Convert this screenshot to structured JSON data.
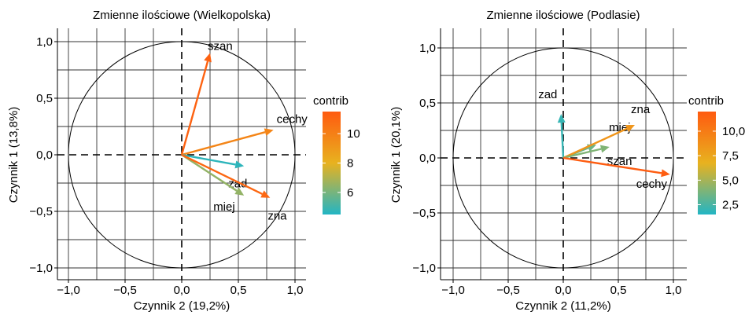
{
  "colors": {
    "low": "#22b5c4",
    "mid": "#e8b21f",
    "high": "#ff5a10",
    "grid": "#333333",
    "circle": "#000000"
  },
  "chart_data": [
    {
      "type": "scatter",
      "title": "Zmienne ilościowe (Wielkopolska)",
      "xlabel": "Czynnik 2 (19,2%)",
      "ylabel": "Czynnik 1 (13,8%)",
      "xlim": [
        -1.0,
        1.0
      ],
      "ylim": [
        -1.0,
        1.0
      ],
      "xticks": [
        -1.0,
        -0.5,
        0.0,
        0.5,
        1.0
      ],
      "yticks": [
        -1.0,
        -0.5,
        0.0,
        0.5,
        1.0
      ],
      "xtick_labels": [
        "−1,0",
        "−0,5",
        "0,0",
        "0,5",
        "1,0"
      ],
      "ytick_labels": [
        "−1,0",
        "−0,5",
        "0,0",
        "0,5",
        "1,0"
      ],
      "grid": true,
      "legend": {
        "title": "contrib",
        "position": "right",
        "min": 4.5,
        "max": 11.5,
        "ticks": [
          6,
          8,
          10
        ],
        "tick_labels": [
          "6",
          "8",
          "10"
        ]
      },
      "vectors": [
        {
          "name": "szan",
          "x": 0.25,
          "y": 0.9,
          "contrib": 11.2
        },
        {
          "name": "cechy",
          "x": 0.81,
          "y": 0.22,
          "contrib": 9.8
        },
        {
          "name": "zad",
          "x": 0.55,
          "y": -0.1,
          "contrib": 4.7
        },
        {
          "name": "miej",
          "x": 0.55,
          "y": -0.36,
          "contrib": 6.5
        },
        {
          "name": "zna",
          "x": 0.78,
          "y": -0.38,
          "contrib": 11.0
        }
      ]
    },
    {
      "type": "scatter",
      "title": "Zmienne ilościowe (Podlasie)",
      "xlabel": "Czynnik 2 (11,2%)",
      "ylabel": "Czynnik 1 (20,1%)",
      "xlim": [
        -1.0,
        1.0
      ],
      "ylim": [
        -1.0,
        1.0
      ],
      "xticks": [
        -1.0,
        -0.5,
        0.0,
        0.5,
        1.0
      ],
      "yticks": [
        -1.0,
        -0.5,
        0.0,
        0.5,
        1.0
      ],
      "xtick_labels": [
        "−1,0",
        "−0,5",
        "0,0",
        "0,5",
        "1,0"
      ],
      "ytick_labels": [
        "−1,0",
        "−0,5",
        "0,0",
        "0,5",
        "1,0"
      ],
      "grid": true,
      "legend": {
        "title": "contrib",
        "position": "right",
        "min": 1.5,
        "max": 12.0,
        "ticks": [
          2.5,
          5.0,
          7.5,
          10.0
        ],
        "tick_labels": [
          "2,5",
          "5,0",
          "7,5",
          "10,0"
        ]
      },
      "vectors": [
        {
          "name": "zad",
          "x": -0.02,
          "y": 0.4,
          "contrib": 2.0
        },
        {
          "name": "miej",
          "x": 0.3,
          "y": 0.12,
          "contrib": 3.5
        },
        {
          "name": "zna",
          "x": 0.65,
          "y": 0.3,
          "contrib": 8.5
        },
        {
          "name": "szan",
          "x": 0.42,
          "y": 0.1,
          "contrib": 4.0
        },
        {
          "name": "cechy",
          "x": 0.97,
          "y": -0.15,
          "contrib": 11.8
        }
      ]
    }
  ]
}
